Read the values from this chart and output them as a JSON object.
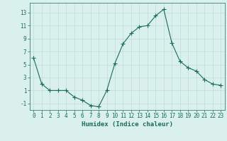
{
  "x": [
    0,
    1,
    2,
    3,
    4,
    5,
    6,
    7,
    8,
    9,
    10,
    11,
    12,
    13,
    14,
    15,
    16,
    17,
    18,
    19,
    20,
    21,
    22,
    23
  ],
  "y": [
    6,
    2,
    1,
    1,
    1,
    0,
    -0.5,
    -1.3,
    -1.5,
    1,
    5.2,
    8.2,
    9.8,
    10.8,
    11.0,
    12.5,
    13.5,
    8.3,
    5.5,
    4.5,
    4.0,
    2.7,
    2.0,
    1.8
  ],
  "line_color": "#1a6b5e",
  "marker": "+",
  "marker_size": 4,
  "bg_color": "#d9f0ec",
  "grid_color": "#c0ddd8",
  "axis_color": "#1a6b5e",
  "xlabel": "Humidex (Indice chaleur)",
  "xlim": [
    -0.5,
    23.5
  ],
  "ylim": [
    -2,
    14.5
  ],
  "yticks": [
    -1,
    1,
    3,
    5,
    7,
    9,
    11,
    13
  ],
  "xticks": [
    0,
    1,
    2,
    3,
    4,
    5,
    6,
    7,
    8,
    9,
    10,
    11,
    12,
    13,
    14,
    15,
    16,
    17,
    18,
    19,
    20,
    21,
    22,
    23
  ],
  "xlabel_fontsize": 6.5,
  "tick_fontsize": 5.5
}
